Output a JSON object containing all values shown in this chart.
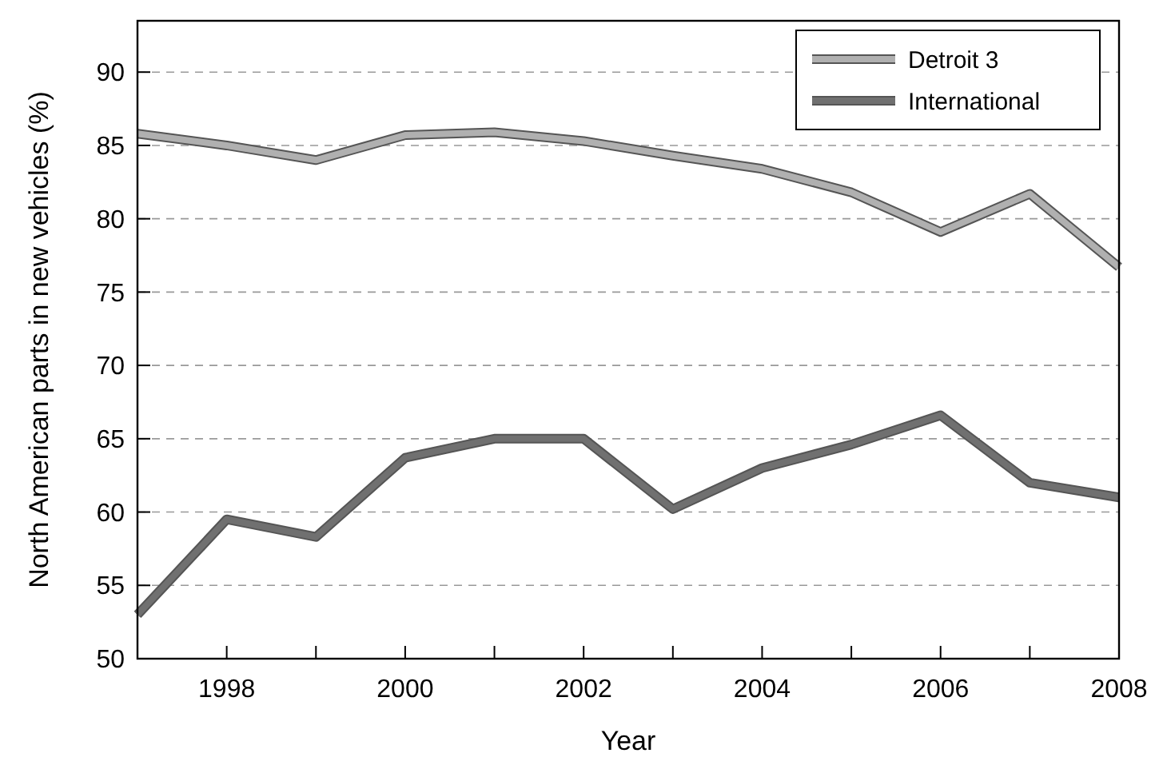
{
  "chart_data": {
    "type": "line",
    "xlabel": "Year",
    "ylabel": "North American parts in new vehicles (%)",
    "x": [
      1997,
      1998,
      1999,
      2000,
      2001,
      2002,
      2003,
      2004,
      2005,
      2006,
      2007,
      2008
    ],
    "series": [
      {
        "name": "Detroit 3",
        "color": "#b0b0b0",
        "values": [
          85.8,
          85,
          84,
          85.7,
          85.9,
          85.3,
          84.3,
          83.4,
          81.8,
          79.1,
          81.7,
          76.7
        ]
      },
      {
        "name": "International",
        "color": "#707070",
        "values": [
          53,
          59.5,
          58.3,
          63.7,
          65,
          65,
          60.2,
          63,
          64.6,
          66.6,
          62,
          61
        ]
      }
    ],
    "xlim": [
      1997,
      2008
    ],
    "xticks": [
      {
        "value": 1997,
        "label": null
      },
      1998,
      {
        "value": 1999,
        "label": null
      },
      2000,
      {
        "value": 2001,
        "label": null
      },
      2002,
      {
        "value": 2003,
        "label": null
      },
      2004,
      {
        "value": 2005,
        "label": null
      },
      2006,
      {
        "value": 2007,
        "label": null
      },
      2008
    ],
    "ylim": [
      50,
      93.5
    ],
    "yticks": [
      50,
      55,
      60,
      65,
      70,
      75,
      80,
      85,
      90
    ],
    "grid": "y",
    "legend": "top right",
    "marker": "none",
    "line_style": "solid"
  }
}
